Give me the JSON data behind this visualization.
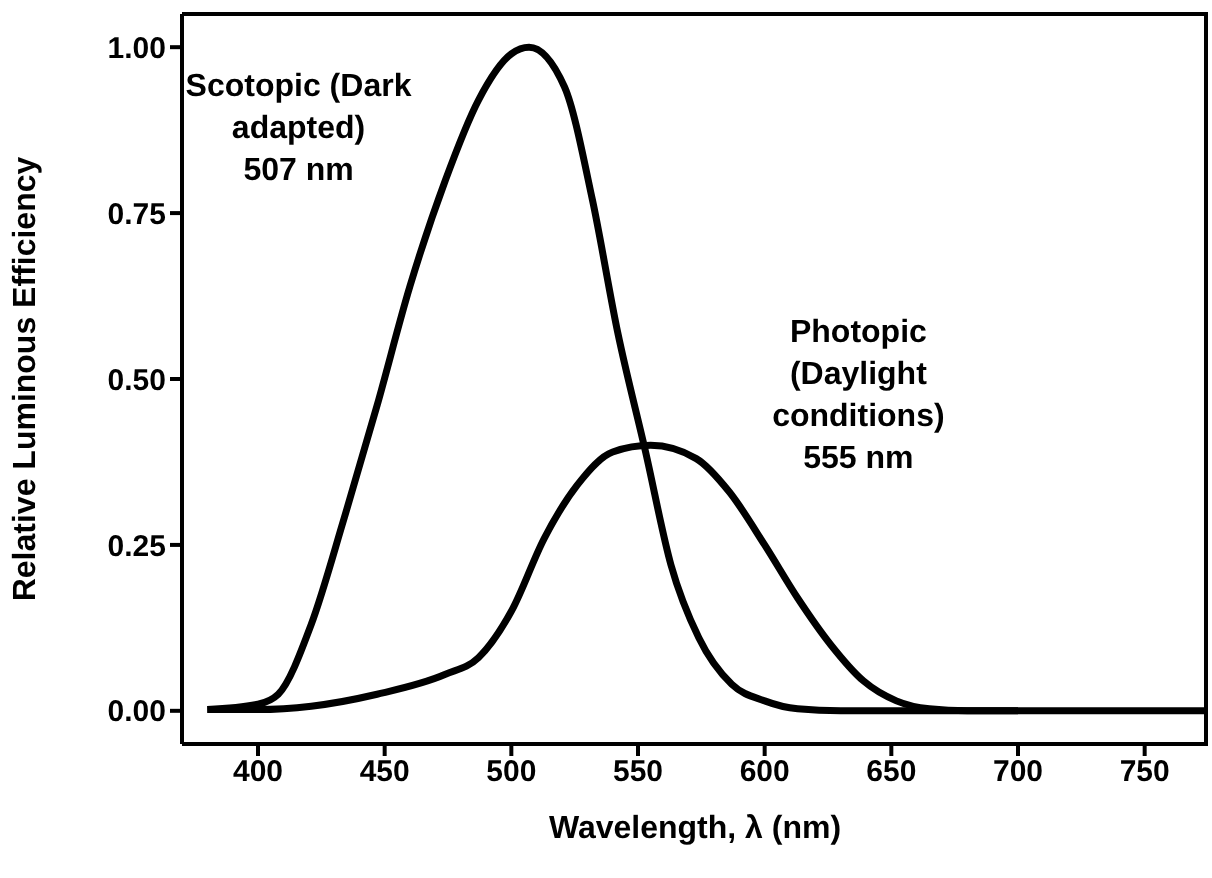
{
  "chart_data": {
    "type": "line",
    "xlabel": "Wavelength, λ (nm)",
    "ylabel": "Relative Luminous Efficiency",
    "xlim": [
      370,
      775
    ],
    "xticks": [
      400,
      450,
      500,
      550,
      600,
      650,
      700,
      750
    ],
    "ylim": [
      -0.05,
      1.05
    ],
    "yticks": [
      {
        "value": 0,
        "label": "0.00"
      },
      {
        "value": 0.25,
        "label": "0.25"
      },
      {
        "value": 0.5,
        "label": "0.50"
      },
      {
        "value": 0.75,
        "label": "0.75"
      },
      {
        "value": 1,
        "label": "1.00"
      }
    ],
    "marker": "none",
    "line_style": "solid",
    "series": [
      {
        "name": "Scotopic (Dark adapted) 507 nm",
        "color": "#000000",
        "x": [
          380,
          400,
          408,
          421,
          434,
          447,
          460,
          474,
          487,
          500,
          507,
          521,
          532,
          542,
          553,
          563,
          574,
          587,
          600,
          613,
          630,
          700
        ],
        "values": [
          0.002,
          0.01,
          0.025,
          0.13,
          0.29,
          0.46,
          0.64,
          0.8,
          0.92,
          0.99,
          1.0,
          0.94,
          0.77,
          0.57,
          0.39,
          0.22,
          0.11,
          0.04,
          0.015,
          0.003,
          0,
          0
        ]
      },
      {
        "name": "Photopic (Daylight conditions) 555 nm",
        "color": "#000000",
        "x": [
          380,
          400,
          421,
          447,
          474,
          487,
          500,
          513,
          526,
          540,
          555,
          573,
          586,
          600,
          613,
          626,
          639,
          652,
          665,
          680,
          700,
          775
        ],
        "values": [
          0.002,
          0.002,
          0.007,
          0.025,
          0.055,
          0.08,
          0.15,
          0.26,
          0.34,
          0.39,
          0.4,
          0.38,
          0.33,
          0.25,
          0.17,
          0.1,
          0.045,
          0.015,
          0.003,
          0,
          0,
          0
        ]
      }
    ]
  }
}
